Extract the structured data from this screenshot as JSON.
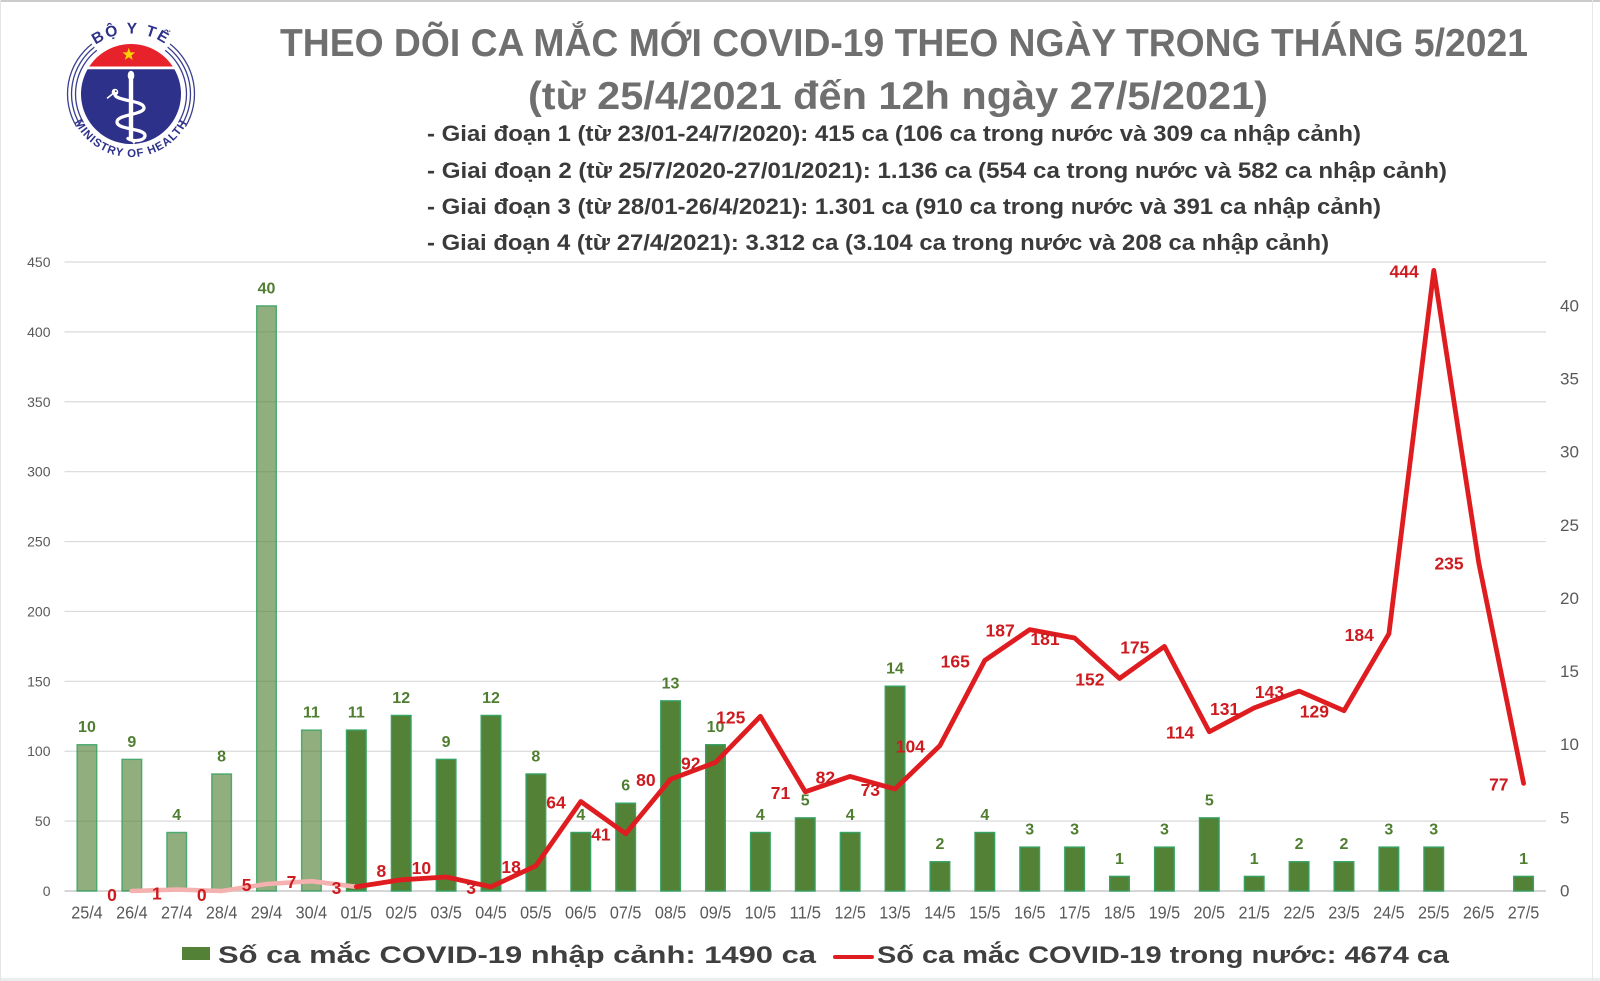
{
  "logo": {
    "top_text": "BỘ Y TẾ",
    "bottom_text": "MINISTRY OF HEALTH",
    "colors": {
      "navy": "#2d3189",
      "red": "#e8222a",
      "star_yellow": "#ffd205",
      "arc_blue": "#3b3f8f"
    }
  },
  "header": {
    "title_line1": "THEO DÕI CA MẮC MỚI COVID-19 THEO NGÀY TRONG THÁNG 5/2021",
    "title_line2": "(từ 25/4/2021 đến 12h ngày 27/5/2021)",
    "phases": [
      "- Giai đoạn 1 (từ 23/01-24/7/2020): 415 ca (106 ca trong nước và 309 ca nhập cảnh)",
      "- Giai đoạn 2 (từ 25/7/2020-27/01/2021): 1.136 ca (554 ca trong nước và 582 ca nhập cảnh)",
      "- Giai đoạn 3 (từ 28/01-26/4/2021): 1.301 ca (910 ca trong nước và 391 ca nhập cảnh)",
      "- Giai đoạn 4 (từ 27/4/2021): 3.312 ca (3.104 ca trong nước và 208 ca nhập cảnh)"
    ]
  },
  "chart_data": {
    "type": "combo",
    "title": "Theo dõi ca mắc mới COVID-19 theo ngày trong tháng 5/2021",
    "categories": [
      "25/4",
      "26/4",
      "27/4",
      "28/4",
      "29/4",
      "30/4",
      "01/5",
      "02/5",
      "03/5",
      "04/5",
      "05/5",
      "06/5",
      "07/5",
      "08/5",
      "09/5",
      "10/5",
      "11/5",
      "12/5",
      "13/5",
      "14/5",
      "15/5",
      "16/5",
      "17/5",
      "18/5",
      "19/5",
      "20/5",
      "21/5",
      "22/5",
      "23/5",
      "24/5",
      "25/5",
      "26/5",
      "27/5"
    ],
    "series": [
      {
        "name": "Số ca mắc COVID-19 nhập cảnh",
        "type": "bar",
        "axis": "right",
        "values": [
          10,
          9,
          4,
          8,
          40,
          11,
          11,
          12,
          9,
          12,
          8,
          4,
          6,
          13,
          10,
          4,
          5,
          4,
          14,
          2,
          4,
          3,
          3,
          1,
          3,
          5,
          1,
          2,
          2,
          3,
          3,
          null,
          1
        ],
        "muted_through_index": 5
      },
      {
        "name": "Số ca mắc COVID-19 trong nước",
        "type": "line",
        "axis": "left",
        "values": [
          null,
          0,
          1,
          0,
          5,
          7,
          3,
          8,
          10,
          3,
          18,
          64,
          41,
          80,
          92,
          125,
          71,
          82,
          73,
          104,
          165,
          187,
          181,
          152,
          175,
          114,
          131,
          143,
          129,
          184,
          444,
          235,
          77
        ],
        "faded_through_index": 6
      }
    ],
    "left_axis": {
      "min": 0,
      "max": 450,
      "step": 50
    },
    "right_axis": {
      "min": 0,
      "max": 43,
      "label_step": 5,
      "last_label": 40
    },
    "grid": true,
    "legend_position": "bottom",
    "colors": {
      "bar_fill": "#538135",
      "bar_border": "#36a264",
      "line_red": "#df1d20",
      "line_faded": "#f4b1af",
      "label_green": "#507e31",
      "label_red": "#cd1b20",
      "tick_text": "#595959",
      "grid_line": "#dadada",
      "axis_line": "#c9c9c9"
    }
  },
  "legend": {
    "imported_label": "Số ca mắc COVID-19 nhập cảnh: 1490 ca",
    "domestic_label": "Số ca mắc COVID-19 trong nước: 4674 ca"
  }
}
